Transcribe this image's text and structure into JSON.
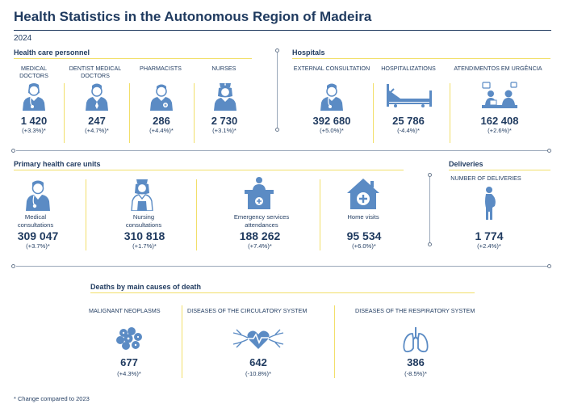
{
  "title": "Health Statistics in the Autonomous Region of Madeira",
  "year": "2024",
  "personnel": {
    "heading": "Health care personnel",
    "items": [
      {
        "label": "MEDICAL DOCTORS",
        "value": "1 420",
        "change": "(+3.3%)*"
      },
      {
        "label": "DENTIST MEDICAL DOCTORS",
        "value": "247",
        "change": "(+4.7%)*"
      },
      {
        "label": "PHARMACISTS",
        "value": "286",
        "change": "(+4.4%)*"
      },
      {
        "label": "NURSES",
        "value": "2 730",
        "change": "(+3.1%)*"
      }
    ]
  },
  "hospitals": {
    "heading": "Hospitals",
    "items": [
      {
        "label": "EXTERNAL CONSULTATION",
        "value": "392 680",
        "change": "(+5.0%)*"
      },
      {
        "label": "HOSPITALIZATIONS",
        "value": "25 786",
        "change": "(-4.4%)*"
      },
      {
        "label": "ATENDIMENTOS EM URGÊNCIA",
        "value": "162 408",
        "change": "(+2.6%)*"
      }
    ]
  },
  "primary": {
    "heading": "Primary health care units",
    "items": [
      {
        "label": "Medical consultations",
        "value": "309 047",
        "change": "(+3.7%)*"
      },
      {
        "label": "Nursing consultations",
        "value": "310 818",
        "change": "(+1.7%)*"
      },
      {
        "label": "Emergency services attendances",
        "value": "188 262",
        "change": "(+7.4%)*"
      },
      {
        "label": "Home visits",
        "value": "95 534",
        "change": "(+6.0%)*"
      }
    ]
  },
  "deliveries": {
    "heading": "Deliveries",
    "label": "NUMBER OF DELIVERIES",
    "value": "1 774",
    "change": "(+2.4%)*"
  },
  "deaths": {
    "heading": "Deaths by main causes of death",
    "items": [
      {
        "label": "MALIGNANT NEOPLASMS",
        "value": "677",
        "change": "(+4.3%)*"
      },
      {
        "label": "DISEASES OF THE CIRCULATORY SYSTEM",
        "value": "642",
        "change": "(-10.8%)*"
      },
      {
        "label": "DISEASES OF THE RESPIRATORY SYSTEM",
        "value": "386",
        "change": "(-8.5%)*"
      }
    ]
  },
  "footnote": "* Change compared to 2023",
  "colors": {
    "navy": "#1f3a5f",
    "icon": "#5b8bc4",
    "accent": "#f2df6a"
  }
}
